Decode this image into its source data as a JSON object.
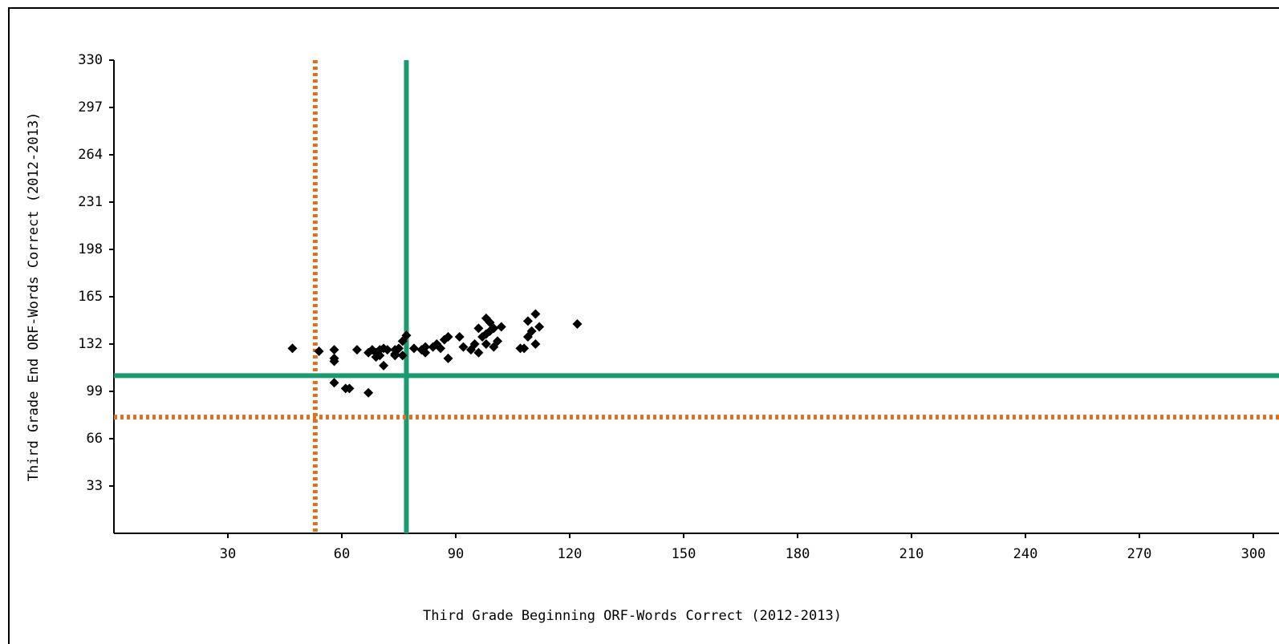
{
  "chart_data": {
    "type": "scatter",
    "x_label": "Third Grade Beginning ORF-Words Correct (2012-2013)",
    "y_label": "Third Grade End ORF-Words Correct (2012-2013)",
    "x": [
      47,
      54,
      58,
      58,
      58,
      58,
      61,
      62,
      64,
      67,
      67,
      68,
      69,
      70,
      71,
      72,
      74,
      71,
      70,
      69,
      74,
      75,
      76,
      77,
      74,
      76,
      79,
      81,
      82,
      82,
      84,
      85,
      87,
      88,
      88,
      86,
      91,
      92,
      94,
      95,
      96,
      97,
      96,
      98,
      98,
      99,
      99,
      100,
      100,
      101,
      102,
      98,
      107,
      108,
      109,
      109,
      110,
      111,
      111,
      112,
      122
    ],
    "y": [
      129,
      127,
      128,
      122,
      120,
      105,
      101,
      101,
      128,
      98,
      126,
      128,
      126,
      128,
      129,
      128,
      125,
      117,
      124,
      123,
      128,
      129,
      134,
      138,
      124,
      124,
      129,
      128,
      130,
      126,
      130,
      132,
      135,
      137,
      122,
      129,
      137,
      130,
      128,
      132,
      143,
      137,
      126,
      132,
      150,
      147,
      141,
      130,
      143,
      134,
      144,
      139,
      129,
      129,
      148,
      137,
      141,
      153,
      132,
      144,
      146
    ],
    "color": "#000000",
    "xlim": [
      0,
      300
    ],
    "xticks": [
      30,
      60,
      90,
      120,
      150,
      180,
      210,
      240,
      270,
      300
    ],
    "ylim": [
      0,
      330
    ],
    "yticks": [
      33,
      66,
      99,
      132,
      165,
      198,
      231,
      264,
      297,
      330
    ],
    "vlines": [
      {
        "value": 53,
        "color": "#e07020",
        "style": "dotted"
      },
      {
        "value": 77,
        "color": "#1a9a70",
        "style": "solid"
      }
    ],
    "hlines": [
      {
        "value": 110,
        "color": "#1a9a70",
        "style": "solid"
      },
      {
        "value": 81,
        "color": "#e07020",
        "style": "dotted"
      }
    ]
  }
}
